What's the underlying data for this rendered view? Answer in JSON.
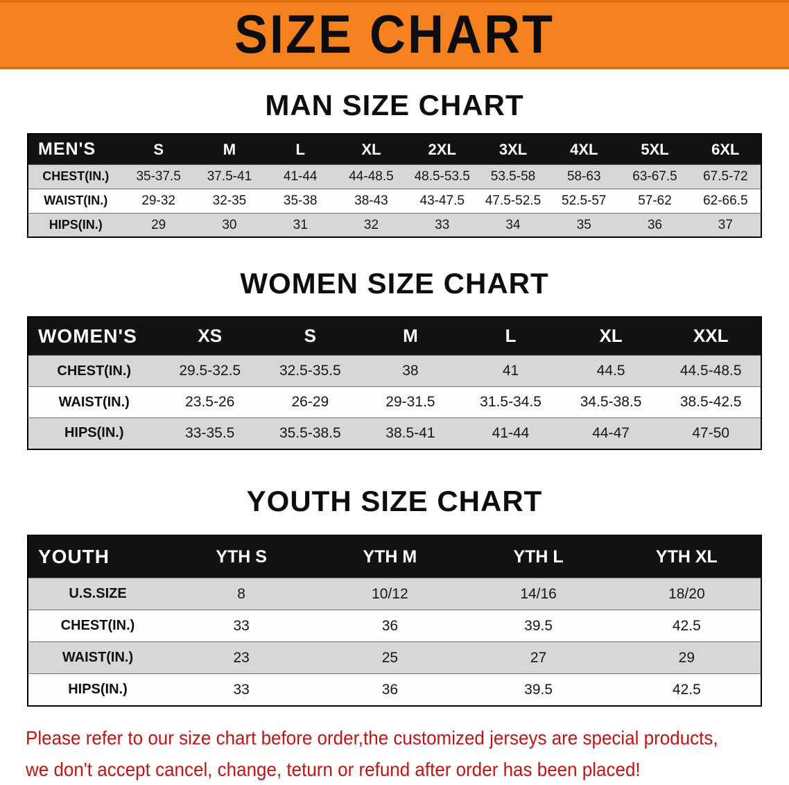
{
  "banner": {
    "title": "SIZE CHART"
  },
  "sections": [
    {
      "heading": "MAN SIZE CHART",
      "table": {
        "header_label": "MEN'S",
        "columns": [
          "S",
          "M",
          "L",
          "XL",
          "2XL",
          "3XL",
          "4XL",
          "5XL",
          "6XL"
        ],
        "rows": [
          {
            "label": "CHEST(IN.)",
            "values": [
              "35-37.5",
              "37.5-41",
              "41-44",
              "44-48.5",
              "48.5-53.5",
              "53.5-58",
              "58-63",
              "63-67.5",
              "67.5-72"
            ]
          },
          {
            "label": "WAIST(IN.)",
            "values": [
              "29-32",
              "32-35",
              "35-38",
              "38-43",
              "43-47.5",
              "47.5-52.5",
              "52.5-57",
              "57-62",
              "62-66.5"
            ]
          },
          {
            "label": "HIPS(IN.)",
            "values": [
              "29",
              "30",
              "31",
              "32",
              "33",
              "34",
              "35",
              "36",
              "37"
            ]
          }
        ]
      }
    },
    {
      "heading": "WOMEN SIZE CHART",
      "table": {
        "header_label": "WOMEN'S",
        "columns": [
          "XS",
          "S",
          "M",
          "L",
          "XL",
          "XXL"
        ],
        "rows": [
          {
            "label": "CHEST(IN.)",
            "values": [
              "29.5-32.5",
              "32.5-35.5",
              "38",
              "41",
              "44.5",
              "44.5-48.5"
            ]
          },
          {
            "label": "WAIST(IN.)",
            "values": [
              "23.5-26",
              "26-29",
              "29-31.5",
              "31.5-34.5",
              "34.5-38.5",
              "38.5-42.5"
            ]
          },
          {
            "label": "HIPS(IN.)",
            "values": [
              "33-35.5",
              "35.5-38.5",
              "38.5-41",
              "41-44",
              "44-47",
              "47-50"
            ]
          }
        ]
      }
    },
    {
      "heading": "YOUTH SIZE CHART",
      "table": {
        "header_label": "YOUTH",
        "columns": [
          "YTH S",
          "YTH M",
          "YTH L",
          "YTH XL"
        ],
        "rows": [
          {
            "label": "U.S.SIZE",
            "values": [
              "8",
              "10/12",
              "14/16",
              "18/20"
            ]
          },
          {
            "label": "CHEST(IN.)",
            "values": [
              "33",
              "36",
              "39.5",
              "42.5"
            ]
          },
          {
            "label": "WAIST(IN.)",
            "values": [
              "23",
              "25",
              "27",
              "29"
            ]
          },
          {
            "label": "HIPS(IN.)",
            "values": [
              "33",
              "36",
              "39.5",
              "42.5"
            ]
          }
        ]
      }
    }
  ],
  "disclaimer": {
    "line1": "Please refer to our size chart before order,the customized jerseys are special products,",
    "line2": "we don't accept cancel, change, teturn or refund after order has been placed!"
  },
  "colors": {
    "banner_orange": "#F6821F",
    "banner_border": "#DD6F10",
    "header_bg": "#121212",
    "header_text": "#FFFFFF",
    "row_alt": "#D7D7D7",
    "disclaimer_red": "#C21414"
  }
}
